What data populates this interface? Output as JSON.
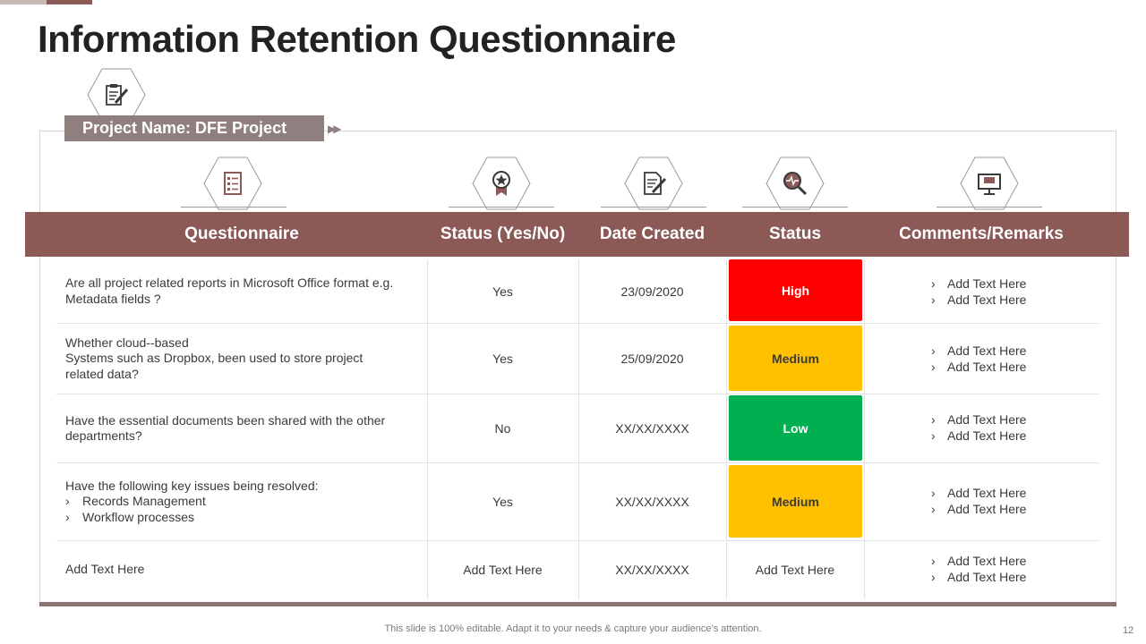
{
  "title": "Information Retention Questionnaire",
  "project_label": "Project Name: DFE Project",
  "columns": {
    "questionnaire": "Questionnaire",
    "status_yes_no": "Status (Yes/No)",
    "date_created": "Date Created",
    "status": "Status",
    "comments": "Comments/Remarks"
  },
  "rows": [
    {
      "question": "Are all project related reports in Microsoft Office format e.g.\nMetadata fields ?",
      "yes_no": "Yes",
      "date": "23/09/2020",
      "status": "High",
      "status_color": "#ff0000",
      "status_text_color": "#ffffff",
      "remarks": [
        "Add Text Here",
        "Add Text Here"
      ]
    },
    {
      "question": "Whether cloud--based\nSystems such as Dropbox, been used to store project\nrelated data?",
      "yes_no": "Yes",
      "date": "25/09/2020",
      "status": "Medium",
      "status_color": "#ffc000",
      "status_text_color": "#3a3a3a",
      "remarks": [
        "Add Text Here",
        "Add Text Here"
      ]
    },
    {
      "question": "Have the essential documents been shared with the other\ndepartments?",
      "yes_no": "No",
      "date": "XX/XX/XXXX",
      "status": "Low",
      "status_color": "#00b050",
      "status_text_color": "#ffffff",
      "remarks": [
        "Add Text Here",
        "Add Text Here"
      ]
    },
    {
      "question": "Have the following key issues being resolved:",
      "question_bullets": [
        "Records Management",
        "Workflow processes"
      ],
      "yes_no": "Yes",
      "date": "XX/XX/XXXX",
      "status": "Medium",
      "status_color": "#ffc000",
      "status_text_color": "#3a3a3a",
      "remarks": [
        "Add Text Here",
        "Add Text Here"
      ]
    },
    {
      "question": "Add Text Here",
      "yes_no": "Add Text Here",
      "date": "XX/XX/XXXX",
      "status": "Add Text Here",
      "status_color": "",
      "status_text_color": "#3a3a3a",
      "remarks": [
        "Add Text Here",
        "Add Text Here"
      ]
    }
  ],
  "bullet_glyph": "›",
  "footer": "This slide is 100% editable. Adapt it to your needs & capture your audience’s attention.",
  "page_number": "12",
  "colors": {
    "header_bar": "#8b5a57",
    "project_label_bg": "#8f7f7e",
    "icon_stroke": "#8b5a57"
  },
  "icons": {
    "project": "document-edit-icon",
    "questionnaire": "checklist-icon",
    "status_yes_no": "award-ribbon-icon",
    "date_created": "document-pen-icon",
    "status": "magnifier-pulse-icon",
    "comments": "monitor-chat-icon"
  }
}
